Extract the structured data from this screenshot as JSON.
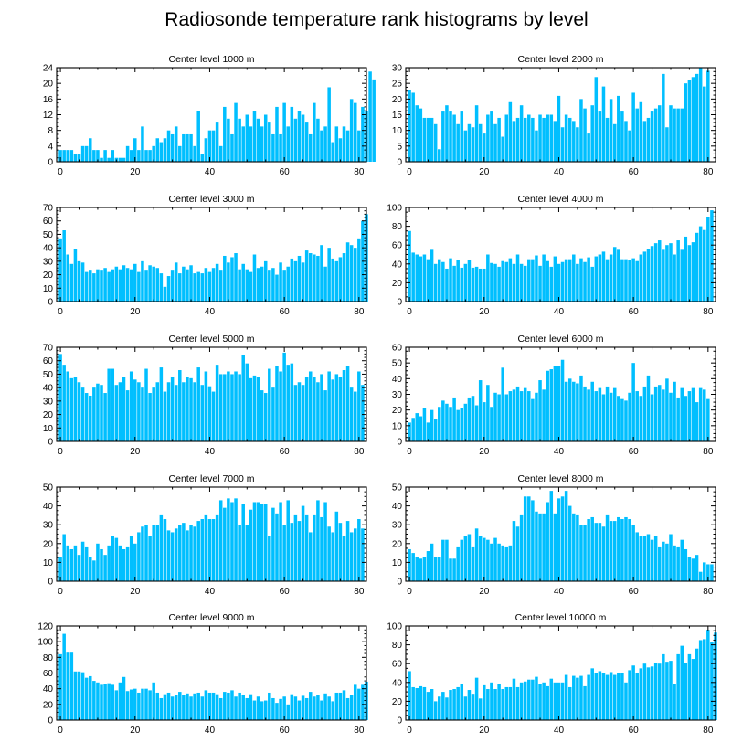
{
  "title": "Radiosonde temperature rank histograms by level",
  "chart_data": [
    {
      "type": "bar",
      "title": "Center level 1000 m",
      "xlim": [
        -1,
        82
      ],
      "ylim": [
        0,
        24
      ],
      "xticks": [
        0,
        20,
        40,
        60,
        80
      ],
      "yticks": [
        0,
        4,
        8,
        12,
        16,
        20,
        24
      ],
      "values": [
        3,
        3,
        3,
        3,
        2,
        2,
        4,
        4,
        6,
        3,
        3,
        1,
        3,
        1,
        3,
        1,
        1,
        1,
        4,
        3,
        6,
        3,
        9,
        3,
        3,
        4,
        6,
        5,
        6,
        8,
        7,
        9,
        4,
        7,
        7,
        7,
        4,
        13,
        2,
        6,
        8,
        8,
        10,
        4,
        14,
        11,
        7,
        15,
        11,
        9,
        12,
        9,
        13,
        11,
        9,
        12,
        10,
        7,
        14,
        7,
        15,
        9,
        14,
        11,
        13,
        12,
        10,
        7,
        15,
        11,
        8,
        9,
        19,
        5,
        9,
        6,
        9,
        8,
        16,
        15,
        8,
        14,
        13,
        23,
        21
      ]
    },
    {
      "type": "bar",
      "title": "Center level 2000 m",
      "xlim": [
        -1,
        82
      ],
      "ylim": [
        0,
        30
      ],
      "xticks": [
        0,
        20,
        40,
        60,
        80
      ],
      "yticks": [
        0,
        5,
        10,
        15,
        20,
        25,
        30
      ],
      "values": [
        23,
        22,
        18,
        17,
        14,
        14,
        14,
        12,
        4,
        16,
        18,
        16,
        15,
        12,
        16,
        10,
        12,
        11,
        18,
        12,
        9,
        15,
        16,
        12,
        14,
        8,
        15,
        19,
        13,
        14,
        18,
        14,
        15,
        14,
        10,
        15,
        14,
        15,
        15,
        13,
        21,
        11,
        15,
        14,
        13,
        11,
        20,
        17,
        9,
        18,
        27,
        16,
        24,
        14,
        20,
        12,
        21,
        16,
        13,
        10,
        22,
        17,
        19,
        13,
        14,
        16,
        17,
        18,
        28,
        11,
        18,
        17,
        17,
        17,
        25,
        26,
        27,
        28,
        30,
        24,
        29
      ]
    },
    {
      "type": "bar",
      "title": "Center level 3000 m",
      "xlim": [
        -1,
        82
      ],
      "ylim": [
        0,
        70
      ],
      "xticks": [
        0,
        20,
        40,
        60,
        80
      ],
      "yticks": [
        0,
        10,
        20,
        30,
        40,
        50,
        60,
        70
      ],
      "values": [
        47,
        53,
        35,
        28,
        39,
        30,
        29,
        22,
        23,
        21,
        24,
        23,
        25,
        22,
        24,
        26,
        24,
        27,
        25,
        24,
        28,
        22,
        30,
        23,
        27,
        26,
        25,
        21,
        11,
        19,
        23,
        29,
        21,
        26,
        24,
        27,
        21,
        22,
        21,
        25,
        22,
        25,
        28,
        23,
        34,
        29,
        33,
        36,
        24,
        28,
        24,
        22,
        35,
        25,
        26,
        30,
        23,
        25,
        20,
        29,
        23,
        26,
        32,
        30,
        34,
        29,
        38,
        36,
        35,
        34,
        42,
        26,
        40,
        32,
        30,
        33,
        36,
        44,
        42,
        40,
        47,
        60,
        65
      ]
    },
    {
      "type": "bar",
      "title": "Center level 4000 m",
      "xlim": [
        -1,
        82
      ],
      "ylim": [
        0,
        100
      ],
      "xticks": [
        0,
        20,
        40,
        60,
        80
      ],
      "yticks": [
        0,
        20,
        40,
        60,
        80,
        100
      ],
      "values": [
        75,
        52,
        50,
        48,
        50,
        45,
        55,
        40,
        45,
        42,
        35,
        46,
        38,
        44,
        36,
        40,
        44,
        36,
        37,
        35,
        35,
        50,
        41,
        40,
        37,
        43,
        42,
        46,
        40,
        50,
        40,
        38,
        45,
        45,
        49,
        38,
        50,
        43,
        37,
        48,
        40,
        42,
        45,
        45,
        50,
        40,
        46,
        42,
        47,
        37,
        48,
        50,
        53,
        45,
        50,
        58,
        55,
        45,
        45,
        44,
        46,
        43,
        50,
        53,
        56,
        59,
        62,
        65,
        55,
        60,
        62,
        50,
        65,
        55,
        69,
        60,
        63,
        73,
        80,
        76,
        90,
        97
      ]
    },
    {
      "type": "bar",
      "title": "Center level 5000 m",
      "xlim": [
        -1,
        82
      ],
      "ylim": [
        0,
        70
      ],
      "xticks": [
        0,
        20,
        40,
        60,
        80
      ],
      "yticks": [
        0,
        10,
        20,
        30,
        40,
        50,
        60,
        70
      ],
      "values": [
        65,
        57,
        52,
        47,
        48,
        44,
        40,
        36,
        34,
        40,
        43,
        42,
        36,
        54,
        54,
        42,
        44,
        48,
        38,
        52,
        46,
        44,
        40,
        54,
        36,
        40,
        44,
        55,
        37,
        44,
        48,
        42,
        53,
        44,
        48,
        47,
        44,
        55,
        42,
        52,
        41,
        37,
        57,
        50,
        50,
        52,
        50,
        52,
        50,
        64,
        58,
        47,
        49,
        48,
        38,
        36,
        54,
        40,
        56,
        52,
        66,
        57,
        58,
        42,
        44,
        42,
        48,
        52,
        48,
        44,
        50,
        38,
        52,
        46,
        50,
        48,
        53,
        56,
        40,
        37,
        52,
        42
      ]
    },
    {
      "type": "bar",
      "title": "Center level 6000 m",
      "xlim": [
        -1,
        82
      ],
      "ylim": [
        0,
        60
      ],
      "xticks": [
        0,
        20,
        40,
        60,
        80
      ],
      "yticks": [
        0,
        10,
        20,
        30,
        40,
        50,
        60
      ],
      "values": [
        12,
        15,
        18,
        16,
        21,
        12,
        20,
        14,
        22,
        26,
        24,
        22,
        28,
        20,
        21,
        24,
        28,
        29,
        23,
        39,
        25,
        36,
        22,
        31,
        30,
        47,
        30,
        32,
        33,
        35,
        32,
        34,
        32,
        27,
        31,
        39,
        33,
        45,
        46,
        48,
        48,
        52,
        38,
        40,
        38,
        37,
        42,
        35,
        33,
        38,
        32,
        34,
        30,
        35,
        31,
        34,
        29,
        27,
        26,
        31,
        50,
        32,
        29,
        35,
        42,
        30,
        35,
        36,
        33,
        40,
        31,
        38,
        28,
        34,
        29,
        32,
        34,
        25,
        34,
        33,
        27
      ]
    },
    {
      "type": "bar",
      "title": "Center level 7000 m",
      "xlim": [
        -1,
        82
      ],
      "ylim": [
        0,
        50
      ],
      "xticks": [
        0,
        20,
        40,
        60,
        80
      ],
      "yticks": [
        0,
        10,
        20,
        30,
        40,
        50
      ],
      "values": [
        13,
        25,
        19,
        17,
        19,
        14,
        21,
        18,
        13,
        11,
        20,
        17,
        14,
        19,
        24,
        23,
        19,
        17,
        18,
        24,
        20,
        26,
        29,
        30,
        24,
        30,
        30,
        35,
        33,
        27,
        26,
        28,
        30,
        31,
        27,
        30,
        29,
        32,
        33,
        35,
        33,
        33,
        35,
        43,
        39,
        44,
        42,
        44,
        30,
        41,
        30,
        38,
        42,
        42,
        41,
        41,
        24,
        39,
        36,
        42,
        30,
        43,
        31,
        35,
        32,
        40,
        35,
        26,
        35,
        43,
        34,
        42,
        29,
        26,
        37,
        31,
        24,
        32,
        26,
        28,
        33,
        28
      ]
    },
    {
      "type": "bar",
      "title": "Center level 8000 m",
      "xlim": [
        -1,
        82
      ],
      "ylim": [
        0,
        50
      ],
      "xticks": [
        0,
        20,
        40,
        60,
        80
      ],
      "yticks": [
        0,
        10,
        20,
        30,
        40,
        50
      ],
      "values": [
        17,
        15,
        13,
        12,
        13,
        16,
        20,
        13,
        13,
        22,
        22,
        12,
        12,
        18,
        22,
        24,
        25,
        18,
        28,
        24,
        23,
        22,
        20,
        23,
        20,
        19,
        18,
        19,
        32,
        29,
        35,
        45,
        45,
        43,
        37,
        36,
        36,
        42,
        48,
        36,
        44,
        45,
        48,
        40,
        36,
        35,
        30,
        30,
        33,
        34,
        31,
        31,
        29,
        35,
        32,
        32,
        34,
        33,
        34,
        33,
        30,
        26,
        24,
        24,
        25,
        22,
        24,
        18,
        21,
        20,
        25,
        19,
        18,
        22,
        17,
        13,
        12,
        14,
        5,
        10,
        9,
        9
      ]
    },
    {
      "type": "bar",
      "title": "Center level 9000 m",
      "xlim": [
        -1,
        82
      ],
      "ylim": [
        0,
        120
      ],
      "xticks": [
        0,
        20,
        40,
        60,
        80
      ],
      "yticks": [
        0,
        20,
        40,
        60,
        80,
        100,
        120
      ],
      "values": [
        84,
        110,
        86,
        86,
        62,
        62,
        61,
        54,
        56,
        50,
        48,
        45,
        46,
        47,
        45,
        38,
        48,
        55,
        37,
        39,
        40,
        35,
        40,
        40,
        38,
        48,
        35,
        28,
        33,
        35,
        30,
        32,
        36,
        32,
        34,
        30,
        34,
        35,
        30,
        38,
        35,
        35,
        33,
        28,
        36,
        35,
        38,
        30,
        35,
        32,
        28,
        33,
        25,
        30,
        24,
        25,
        35,
        28,
        22,
        27,
        30,
        20,
        33,
        30,
        25,
        31,
        28,
        36,
        30,
        32,
        25,
        34,
        30,
        24,
        35,
        35,
        38,
        28,
        32,
        45,
        40,
        45,
        49
      ]
    },
    {
      "type": "bar",
      "title": "Center level 10000 m",
      "xlim": [
        -1,
        82
      ],
      "ylim": [
        0,
        100
      ],
      "xticks": [
        0,
        20,
        40,
        60,
        80
      ],
      "yticks": [
        0,
        20,
        40,
        60,
        80,
        100
      ],
      "values": [
        52,
        35,
        34,
        36,
        35,
        30,
        33,
        20,
        25,
        30,
        24,
        32,
        33,
        35,
        38,
        25,
        32,
        28,
        45,
        23,
        37,
        33,
        40,
        33,
        38,
        33,
        35,
        35,
        44,
        35,
        40,
        41,
        43,
        43,
        46,
        38,
        40,
        36,
        44,
        40,
        40,
        40,
        48,
        35,
        47,
        45,
        47,
        36,
        48,
        55,
        50,
        52,
        50,
        48,
        51,
        48,
        50,
        50,
        40,
        53,
        58,
        50,
        55,
        60,
        56,
        57,
        61,
        60,
        70,
        62,
        63,
        38,
        70,
        79,
        61,
        70,
        65,
        76,
        85,
        86,
        96,
        83,
        93
      ]
    }
  ]
}
